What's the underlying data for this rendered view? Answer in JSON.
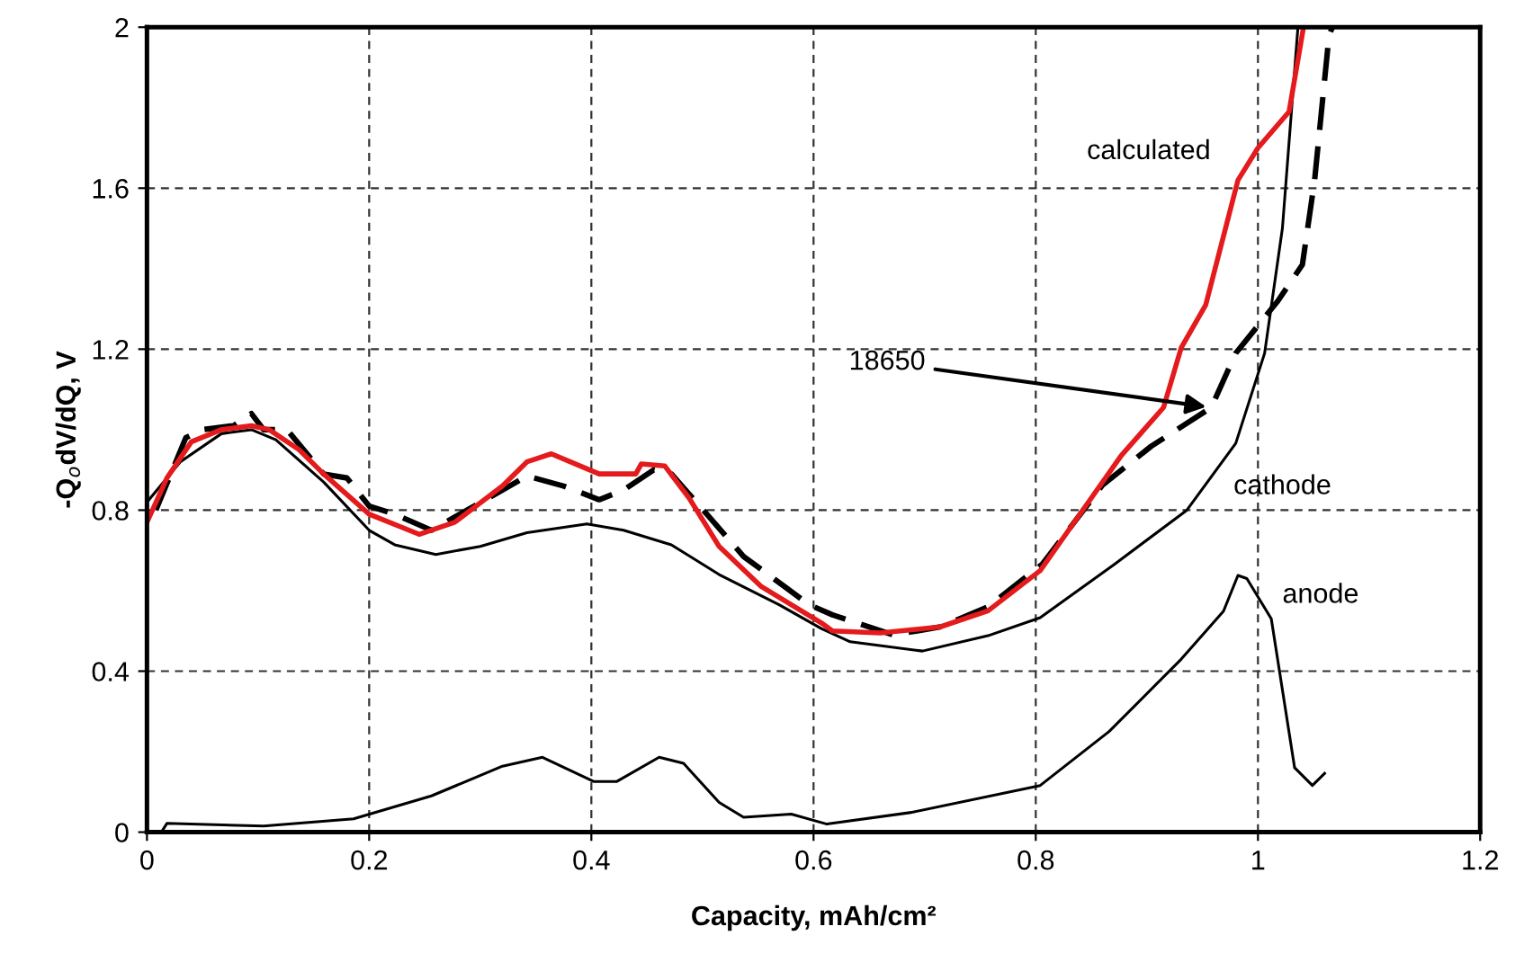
{
  "chart_data": {
    "type": "line",
    "xlabel": "Capacity, mAh/cm²",
    "ylabel": "-Q$_{o}$dV/dQ, V",
    "xlim": [
      0,
      1.2
    ],
    "ylim": [
      0,
      2
    ],
    "xticks": [
      0,
      0.2,
      0.4,
      0.6,
      0.8,
      {
        "value": 1,
        "label": "1"
      },
      1.2
    ],
    "yticks": [
      0,
      0.4,
      0.8,
      1.2,
      1.6,
      {
        "value": 2,
        "label": "2"
      }
    ],
    "grid": true,
    "legend": false,
    "marker": "none",
    "series": [
      {
        "color": "#000000",
        "line_style": "solid",
        "x": [
          0.013,
          0.018,
          0.105,
          0.186,
          0.256,
          0.32,
          0.356,
          0.402,
          0.423,
          0.461,
          0.483,
          0.515,
          0.537,
          0.58,
          0.612,
          0.688,
          0.804,
          0.866,
          0.931,
          0.969,
          0.982,
          0.99,
          1.012,
          1.033,
          1.049,
          1.06
        ],
        "values": [
          0.0,
          0.022,
          0.015,
          0.033,
          0.09,
          0.164,
          0.186,
          0.126,
          0.126,
          0.186,
          0.171,
          0.074,
          0.037,
          0.045,
          0.02,
          0.049,
          0.116,
          0.25,
          0.43,
          0.549,
          0.638,
          0.63,
          0.53,
          0.16,
          0.116,
          0.146
        ]
      },
      {
        "color": "#000000",
        "line_style": "solid",
        "x": [
          0,
          0.03,
          0.067,
          0.094,
          0.116,
          0.159,
          0.2,
          0.223,
          0.26,
          0.3,
          0.342,
          0.396,
          0.429,
          0.472,
          0.515,
          0.569,
          0.607,
          0.633,
          0.698,
          0.757,
          0.804,
          0.871,
          0.936,
          0.98,
          1.006,
          1.022,
          1.036
        ],
        "values": [
          0.82,
          0.92,
          0.99,
          1.0,
          0.975,
          0.87,
          0.75,
          0.714,
          0.69,
          0.71,
          0.744,
          0.766,
          0.75,
          0.714,
          0.64,
          0.565,
          0.506,
          0.473,
          0.45,
          0.488,
          0.533,
          0.666,
          0.8,
          0.966,
          1.19,
          1.5,
          2.0
        ]
      },
      {
        "color": "#000000",
        "line_style": "dashed",
        "x": [
          0.008,
          0.035,
          0.05,
          0.078,
          0.094,
          0.105,
          0.126,
          0.159,
          0.18,
          0.2,
          0.223,
          0.256,
          0.288,
          0.32,
          0.342,
          0.375,
          0.407,
          0.429,
          0.456,
          0.472,
          0.504,
          0.537,
          0.574,
          0.596,
          0.617,
          0.672,
          0.714,
          0.757,
          0.806,
          0.86,
          0.904,
          0.958,
          0.98,
          1.018,
          1.04,
          1.051,
          1.064,
          1.067
        ],
        "values": [
          0.8,
          0.98,
          1.0,
          1.01,
          1.04,
          1.0,
          1.0,
          0.89,
          0.88,
          0.81,
          0.79,
          0.75,
          0.8,
          0.85,
          0.885,
          0.86,
          0.826,
          0.85,
          0.9,
          0.89,
          0.79,
          0.685,
          0.61,
          0.565,
          0.54,
          0.49,
          0.51,
          0.56,
          0.666,
          0.862,
          0.959,
          1.055,
          1.19,
          1.32,
          1.41,
          1.62,
          1.98,
          2.0
        ]
      },
      {
        "color": "#e41a1c",
        "line_style": "solid",
        "x": [
          0,
          0.018,
          0.04,
          0.067,
          0.094,
          0.11,
          0.137,
          0.159,
          0.2,
          0.245,
          0.277,
          0.32,
          0.342,
          0.364,
          0.407,
          0.44,
          0.445,
          0.466,
          0.488,
          0.515,
          0.553,
          0.607,
          0.617,
          0.66,
          0.714,
          0.757,
          0.804,
          0.839,
          0.877,
          0.915,
          0.931,
          0.953,
          0.982,
          1.0,
          1.028,
          1.041
        ],
        "values": [
          0.77,
          0.88,
          0.97,
          1.0,
          1.01,
          1.0,
          0.95,
          0.89,
          0.79,
          0.74,
          0.77,
          0.86,
          0.92,
          0.94,
          0.89,
          0.89,
          0.915,
          0.91,
          0.83,
          0.71,
          0.61,
          0.52,
          0.5,
          0.495,
          0.51,
          0.55,
          0.65,
          0.787,
          0.936,
          1.055,
          1.204,
          1.31,
          1.62,
          1.7,
          1.79,
          2.0
        ]
      }
    ],
    "annotations": [
      "calculated",
      {
        "text": "18650",
        "x": 0.958,
        "y": 1.055
      },
      {
        "text": "cathode",
        "x": 0.96,
        "y": 0.87
      },
      {
        "text": "anode",
        "x": 0.995,
        "y": 0.6
      }
    ]
  }
}
